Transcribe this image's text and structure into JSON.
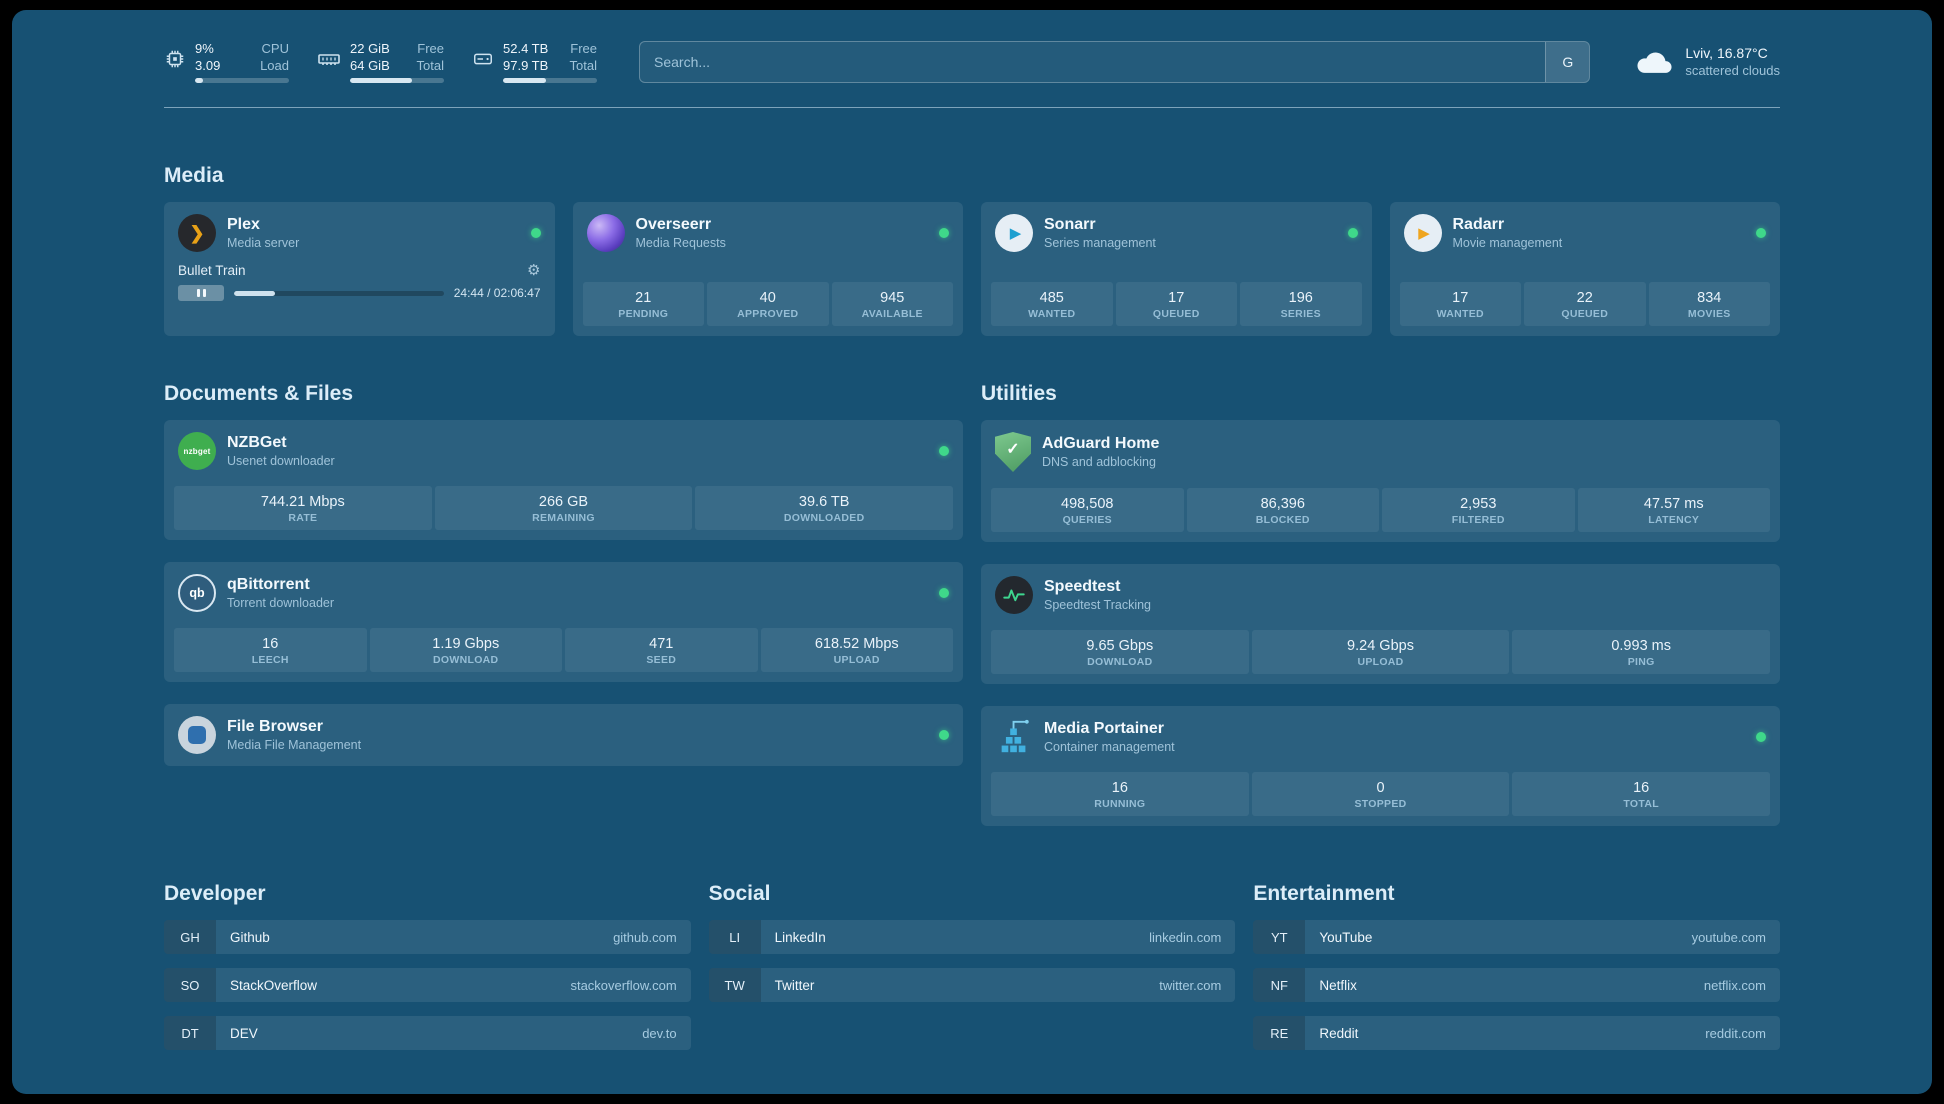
{
  "topbar": {
    "cpu": {
      "v1": "9%",
      "l1": "CPU",
      "v2": "3.09",
      "l2": "Load",
      "percent": 9
    },
    "memory": {
      "v1": "22 GiB",
      "l1": "Free",
      "v2": "64 GiB",
      "l2": "Total",
      "percent": 66
    },
    "disk": {
      "v1": "52.4 TB",
      "l1": "Free",
      "v2": "97.9 TB",
      "l2": "Total",
      "percent": 46
    },
    "search": {
      "placeholder": "Search...",
      "button_label": "G"
    },
    "weather": {
      "location": "Lviv, 16.87°C",
      "condition": "scattered clouds"
    }
  },
  "media": {
    "section_title": "Media",
    "plex": {
      "title": "Plex",
      "subtitle": "Media server",
      "now_playing": {
        "title": "Bullet Train",
        "time": "24:44 / 02:06:47",
        "percent": 19.5
      }
    },
    "overseerr": {
      "title": "Overseerr",
      "subtitle": "Media Requests",
      "stats": [
        {
          "value": "21",
          "label": "PENDING"
        },
        {
          "value": "40",
          "label": "APPROVED"
        },
        {
          "value": "945",
          "label": "AVAILABLE"
        }
      ]
    },
    "sonarr": {
      "title": "Sonarr",
      "subtitle": "Series management",
      "stats": [
        {
          "value": "485",
          "label": "WANTED"
        },
        {
          "value": "17",
          "label": "QUEUED"
        },
        {
          "value": "196",
          "label": "SERIES"
        }
      ]
    },
    "radarr": {
      "title": "Radarr",
      "subtitle": "Movie management",
      "stats": [
        {
          "value": "17",
          "label": "WANTED"
        },
        {
          "value": "22",
          "label": "QUEUED"
        },
        {
          "value": "834",
          "label": "MOVIES"
        }
      ]
    }
  },
  "documents": {
    "section_title": "Documents & Files",
    "nzbget": {
      "title": "NZBGet",
      "subtitle": "Usenet downloader",
      "stats": [
        {
          "value": "744.21 Mbps",
          "label": "RATE"
        },
        {
          "value": "266 GB",
          "label": "REMAINING"
        },
        {
          "value": "39.6 TB",
          "label": "DOWNLOADED"
        }
      ]
    },
    "qbittorrent": {
      "title": "qBittorrent",
      "subtitle": "Torrent downloader",
      "stats": [
        {
          "value": "16",
          "label": "LEECH"
        },
        {
          "value": "1.19 Gbps",
          "label": "DOWNLOAD"
        },
        {
          "value": "471",
          "label": "SEED"
        },
        {
          "value": "618.52 Mbps",
          "label": "UPLOAD"
        }
      ]
    },
    "filebrowser": {
      "title": "File Browser",
      "subtitle": "Media File Management"
    }
  },
  "utilities": {
    "section_title": "Utilities",
    "adguard": {
      "title": "AdGuard Home",
      "subtitle": "DNS and adblocking",
      "stats": [
        {
          "value": "498,508",
          "label": "QUERIES"
        },
        {
          "value": "86,396",
          "label": "BLOCKED"
        },
        {
          "value": "2,953",
          "label": "FILTERED"
        },
        {
          "value": "47.57 ms",
          "label": "LATENCY"
        }
      ]
    },
    "speedtest": {
      "title": "Speedtest",
      "subtitle": "Speedtest Tracking",
      "stats": [
        {
          "value": "9.65 Gbps",
          "label": "DOWNLOAD"
        },
        {
          "value": "9.24 Gbps",
          "label": "UPLOAD"
        },
        {
          "value": "0.993 ms",
          "label": "PING"
        }
      ]
    },
    "portainer": {
      "title": "Media Portainer",
      "subtitle": "Container management",
      "stats": [
        {
          "value": "16",
          "label": "RUNNING"
        },
        {
          "value": "0",
          "label": "STOPPED"
        },
        {
          "value": "16",
          "label": "TOTAL"
        }
      ]
    }
  },
  "bookmarks": {
    "developer": {
      "section_title": "Developer",
      "items": [
        {
          "abbr": "GH",
          "name": "Github",
          "url": "github.com"
        },
        {
          "abbr": "SO",
          "name": "StackOverflow",
          "url": "stackoverflow.com"
        },
        {
          "abbr": "DT",
          "name": "DEV",
          "url": "dev.to"
        }
      ]
    },
    "social": {
      "section_title": "Social",
      "items": [
        {
          "abbr": "LI",
          "name": "LinkedIn",
          "url": "linkedin.com"
        },
        {
          "abbr": "TW",
          "name": "Twitter",
          "url": "twitter.com"
        }
      ]
    },
    "entertainment": {
      "section_title": "Entertainment",
      "items": [
        {
          "abbr": "YT",
          "name": "YouTube",
          "url": "youtube.com"
        },
        {
          "abbr": "NF",
          "name": "Netflix",
          "url": "netflix.com"
        },
        {
          "abbr": "RE",
          "name": "Reddit",
          "url": "reddit.com"
        }
      ]
    }
  },
  "icons": {
    "gear": "⚙",
    "plex_chevron": "❯",
    "play": "▶",
    "qbittorrent_label": "qb",
    "nzbget_label": "nzbget",
    "adguard_check": "✓"
  },
  "colors": {
    "background": "#175173",
    "card": "#2a617f",
    "status_online": "#3fd88a",
    "muted_text": "#9fc3d9"
  }
}
